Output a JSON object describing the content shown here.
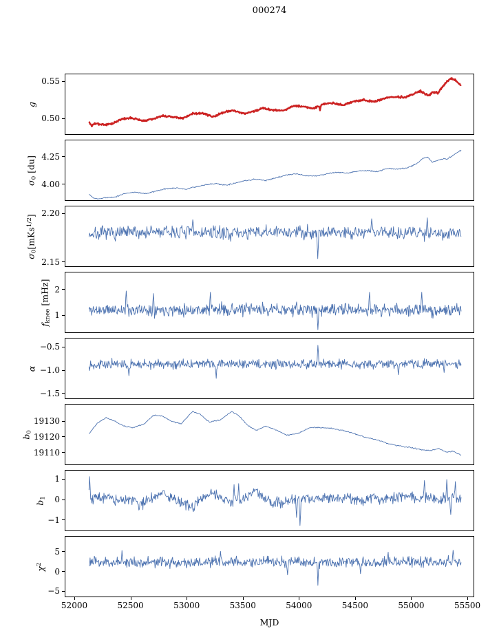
{
  "title": "000274",
  "xlabel": "MJD",
  "colors": {
    "blue": "#4c72b0",
    "red": "#cc2222",
    "axis": "#000000"
  },
  "chart_data": {
    "type": "line",
    "title": "000274",
    "xlabel": "MJD",
    "x_range": [
      51914,
      55561
    ],
    "x_data_range": [
      52125,
      55450
    ],
    "x_ticks": [
      {
        "value": 52000,
        "label": "52000"
      },
      {
        "value": 52500,
        "label": "52500"
      },
      {
        "value": 53000,
        "label": "53000"
      },
      {
        "value": 53500,
        "label": "53500"
      },
      {
        "value": 54000,
        "label": "54000"
      },
      {
        "value": 54500,
        "label": "54500"
      },
      {
        "value": 55000,
        "label": "55000"
      },
      {
        "value": 55500,
        "label": "55500"
      }
    ],
    "panels": [
      {
        "id": "g",
        "ylabel_segments": [
          {
            "t": "g"
          }
        ],
        "color": "red",
        "line_width": 2.4,
        "seed": 3,
        "n_points": 800,
        "noise": 0.0009,
        "ylim": [
          0.4778,
          0.5602
        ],
        "yticks": [
          {
            "value": 0.5,
            "label": "0.50"
          },
          {
            "value": 0.55,
            "label": "0.55"
          }
        ],
        "trend": [
          [
            52125,
            0.4955
          ],
          [
            52150,
            0.4885
          ],
          [
            52170,
            0.4925
          ],
          [
            52250,
            0.4905
          ],
          [
            52330,
            0.4925
          ],
          [
            52420,
            0.4985
          ],
          [
            52510,
            0.5
          ],
          [
            52600,
            0.4965
          ],
          [
            52690,
            0.4985
          ],
          [
            52780,
            0.503
          ],
          [
            52870,
            0.5015
          ],
          [
            52960,
            0.4995
          ],
          [
            53050,
            0.506
          ],
          [
            53140,
            0.5065
          ],
          [
            53230,
            0.502
          ],
          [
            53320,
            0.5075
          ],
          [
            53410,
            0.5105
          ],
          [
            53500,
            0.506
          ],
          [
            53590,
            0.509
          ],
          [
            53680,
            0.5135
          ],
          [
            53770,
            0.511
          ],
          [
            53860,
            0.51
          ],
          [
            53950,
            0.5165
          ],
          [
            54040,
            0.516
          ],
          [
            54130,
            0.513
          ],
          [
            54220,
            0.5195
          ],
          [
            54310,
            0.5205
          ],
          [
            54400,
            0.5175
          ],
          [
            54490,
            0.523
          ],
          [
            54580,
            0.525
          ],
          [
            54670,
            0.522
          ],
          [
            54760,
            0.527
          ],
          [
            54850,
            0.529
          ],
          [
            54940,
            0.5285
          ],
          [
            55030,
            0.533
          ],
          [
            55080,
            0.5375
          ],
          [
            55120,
            0.534
          ],
          [
            55160,
            0.531
          ],
          [
            55200,
            0.536
          ],
          [
            55240,
            0.5345
          ],
          [
            55280,
            0.542
          ],
          [
            55320,
            0.55
          ],
          [
            55360,
            0.5545
          ],
          [
            55400,
            0.552
          ],
          [
            55450,
            0.545
          ]
        ],
        "spikes": [
          [
            54190,
            0.5105
          ]
        ]
      },
      {
        "id": "sigma0-du",
        "ylabel_segments": [
          {
            "t": "σ"
          },
          {
            "t": "0",
            "sub": true
          },
          {
            "t": " [du]",
            "rm": true
          }
        ],
        "color": "blue",
        "line_width": 0.9,
        "seed": 5,
        "n_points": 600,
        "noise": 0.004,
        "ylim": [
          3.85,
          4.406
        ],
        "yticks": [
          {
            "value": 4.0,
            "label": "4.00"
          },
          {
            "value": 4.25,
            "label": "4.25"
          }
        ],
        "trend": [
          [
            52125,
            3.905
          ],
          [
            52160,
            3.875
          ],
          [
            52200,
            3.86
          ],
          [
            52280,
            3.875
          ],
          [
            52360,
            3.88
          ],
          [
            52450,
            3.915
          ],
          [
            52540,
            3.925
          ],
          [
            52630,
            3.91
          ],
          [
            52720,
            3.935
          ],
          [
            52810,
            3.955
          ],
          [
            52900,
            3.965
          ],
          [
            52990,
            3.95
          ],
          [
            53080,
            3.975
          ],
          [
            53170,
            3.995
          ],
          [
            53260,
            4.005
          ],
          [
            53350,
            3.99
          ],
          [
            53440,
            4.01
          ],
          [
            53530,
            4.035
          ],
          [
            53620,
            4.045
          ],
          [
            53710,
            4.035
          ],
          [
            53800,
            4.06
          ],
          [
            53890,
            4.085
          ],
          [
            53980,
            4.095
          ],
          [
            54070,
            4.075
          ],
          [
            54160,
            4.075
          ],
          [
            54250,
            4.095
          ],
          [
            54340,
            4.11
          ],
          [
            54430,
            4.1
          ],
          [
            54520,
            4.12
          ],
          [
            54610,
            4.125
          ],
          [
            54700,
            4.115
          ],
          [
            54790,
            4.145
          ],
          [
            54880,
            4.14
          ],
          [
            54970,
            4.15
          ],
          [
            55060,
            4.195
          ],
          [
            55110,
            4.24
          ],
          [
            55150,
            4.25
          ],
          [
            55190,
            4.205
          ],
          [
            55230,
            4.215
          ],
          [
            55280,
            4.235
          ],
          [
            55330,
            4.235
          ],
          [
            55380,
            4.27
          ],
          [
            55450,
            4.315
          ]
        ],
        "spikes": []
      },
      {
        "id": "sigma0-mks",
        "ylabel_segments": [
          {
            "t": "σ"
          },
          {
            "t": "0",
            "sub": true
          },
          {
            "t": "[mKs",
            "rm": true
          },
          {
            "t": "1/2",
            "sup": true
          },
          {
            "t": "]",
            "rm": true
          }
        ],
        "color": "blue",
        "line_width": 0.9,
        "seed": 7,
        "n_points": 650,
        "noise": 0.005,
        "ylim": [
          2.145,
          2.208
        ],
        "yticks": [
          {
            "value": 2.15,
            "label": "2.15"
          },
          {
            "value": 2.2,
            "label": "2.20"
          }
        ],
        "trend": [
          [
            52125,
            2.179
          ],
          [
            52700,
            2.181
          ],
          [
            53400,
            2.18
          ],
          [
            54100,
            2.181
          ],
          [
            54800,
            2.181
          ],
          [
            55450,
            2.18
          ]
        ],
        "spikes": [
          [
            54170,
            2.153
          ],
          [
            53050,
            2.194
          ],
          [
            54650,
            2.195
          ],
          [
            55150,
            2.196
          ]
        ]
      },
      {
        "id": "fknee",
        "ylabel_segments": [
          {
            "t": "f"
          },
          {
            "t": "knee",
            "sub": true
          },
          {
            "t": " [mHz]",
            "rm": true
          }
        ],
        "color": "blue",
        "line_width": 0.9,
        "seed": 11,
        "n_points": 700,
        "noise": 0.17,
        "ylim": [
          0.32,
          2.68
        ],
        "yticks": [
          {
            "value": 1,
            "label": "1"
          },
          {
            "value": 2,
            "label": "2"
          }
        ],
        "trend": [
          [
            52125,
            1.2
          ],
          [
            53500,
            1.22
          ],
          [
            55450,
            1.18
          ]
        ],
        "spikes": [
          [
            52460,
            1.95
          ],
          [
            52700,
            1.85
          ],
          [
            53210,
            1.9
          ],
          [
            54630,
            1.9
          ],
          [
            55100,
            1.9
          ],
          [
            54170,
            0.42
          ]
        ]
      },
      {
        "id": "alpha",
        "ylabel_segments": [
          {
            "t": "α"
          }
        ],
        "color": "blue",
        "line_width": 0.9,
        "seed": 13,
        "n_points": 700,
        "noise": 0.07,
        "ylim": [
          -1.62,
          -0.3
        ],
        "yticks": [
          {
            "value": -0.5,
            "label": "−0.5"
          },
          {
            "value": -1.0,
            "label": "−1.0"
          },
          {
            "value": -1.5,
            "label": "−1.5"
          }
        ],
        "trend": [
          [
            52125,
            -0.87
          ],
          [
            53500,
            -0.86
          ],
          [
            55450,
            -0.86
          ]
        ],
        "spikes": [
          [
            54170,
            -0.45
          ],
          [
            53260,
            -1.18
          ],
          [
            52480,
            -1.12
          ],
          [
            54890,
            -1.1
          ],
          [
            55300,
            -1.05
          ]
        ]
      },
      {
        "id": "b0",
        "ylabel_segments": [
          {
            "t": "b"
          },
          {
            "t": "0",
            "sub": true
          }
        ],
        "color": "blue",
        "line_width": 0.9,
        "seed": 17,
        "n_points": 500,
        "noise": 0.25,
        "ylim": [
          19102,
          19141
        ],
        "yticks": [
          {
            "value": 19110,
            "label": "19110"
          },
          {
            "value": 19120,
            "label": "19120"
          },
          {
            "value": 19130,
            "label": "19130"
          }
        ],
        "trend": [
          [
            52125,
            19122
          ],
          [
            52200,
            19129
          ],
          [
            52280,
            19132.5
          ],
          [
            52360,
            19130
          ],
          [
            52440,
            19127
          ],
          [
            52520,
            19126
          ],
          [
            52620,
            19128.5
          ],
          [
            52700,
            19134
          ],
          [
            52780,
            19133.5
          ],
          [
            52860,
            19130
          ],
          [
            52950,
            19128.5
          ],
          [
            53050,
            19136.5
          ],
          [
            53120,
            19134.5
          ],
          [
            53200,
            19129.5
          ],
          [
            53300,
            19131
          ],
          [
            53400,
            19136.5
          ],
          [
            53460,
            19134
          ],
          [
            53550,
            19127
          ],
          [
            53620,
            19124
          ],
          [
            53700,
            19127
          ],
          [
            53780,
            19125
          ],
          [
            53900,
            19121
          ],
          [
            54000,
            19122.5
          ],
          [
            54100,
            19126
          ],
          [
            54200,
            19126
          ],
          [
            54300,
            19125.5
          ],
          [
            54400,
            19124
          ],
          [
            54500,
            19122
          ],
          [
            54600,
            19119.5
          ],
          [
            54700,
            19118
          ],
          [
            54800,
            19115.5
          ],
          [
            54900,
            19114
          ],
          [
            55000,
            19113
          ],
          [
            55100,
            19111.5
          ],
          [
            55180,
            19111
          ],
          [
            55250,
            19112.5
          ],
          [
            55320,
            19110
          ],
          [
            55380,
            19110.5
          ],
          [
            55450,
            19108
          ]
        ],
        "spikes": []
      },
      {
        "id": "b1",
        "ylabel_segments": [
          {
            "t": "b"
          },
          {
            "t": "1",
            "sub": true
          }
        ],
        "color": "blue",
        "line_width": 0.9,
        "seed": 19,
        "n_points": 650,
        "noise": 0.2,
        "ylim": [
          -1.55,
          1.45
        ],
        "yticks": [
          {
            "value": -1,
            "label": "−1"
          },
          {
            "value": 0,
            "label": "0"
          },
          {
            "value": 1,
            "label": "1"
          }
        ],
        "trend": [
          [
            52125,
            0.0
          ],
          [
            52200,
            0.15
          ],
          [
            52300,
            0.1
          ],
          [
            52400,
            -0.1
          ],
          [
            52500,
            0.05
          ],
          [
            52600,
            -0.25
          ],
          [
            52700,
            0.1
          ],
          [
            52800,
            0.3
          ],
          [
            52850,
            0.1
          ],
          [
            52950,
            -0.2
          ],
          [
            53050,
            -0.35
          ],
          [
            53150,
            0.1
          ],
          [
            53250,
            0.35
          ],
          [
            53300,
            0.15
          ],
          [
            53400,
            -0.2
          ],
          [
            53500,
            0.0
          ],
          [
            53600,
            0.45
          ],
          [
            53650,
            0.2
          ],
          [
            53750,
            -0.15
          ],
          [
            53850,
            -0.2
          ],
          [
            53950,
            0.1
          ],
          [
            54050,
            0.1
          ],
          [
            54150,
            0.0
          ],
          [
            54250,
            0.1
          ],
          [
            54350,
            0.05
          ],
          [
            54450,
            0.1
          ],
          [
            54550,
            0.0
          ],
          [
            54650,
            0.1
          ],
          [
            54750,
            0.05
          ],
          [
            54850,
            0.1
          ],
          [
            54950,
            0.15
          ],
          [
            55050,
            0.05
          ],
          [
            55150,
            0.1
          ],
          [
            55250,
            0.0
          ],
          [
            55350,
            0.1
          ],
          [
            55450,
            0.05
          ]
        ],
        "spikes": [
          [
            52130,
            1.15
          ],
          [
            53420,
            0.75
          ],
          [
            53460,
            0.8
          ],
          [
            53980,
            -0.9
          ],
          [
            54010,
            -1.3
          ],
          [
            55120,
            0.95
          ],
          [
            55320,
            1.0
          ],
          [
            55360,
            -0.75
          ],
          [
            55400,
            0.9
          ]
        ]
      },
      {
        "id": "chi2",
        "ylabel_segments": [
          {
            "t": "χ"
          },
          {
            "t": "2",
            "sup": true
          }
        ],
        "color": "blue",
        "line_width": 0.9,
        "seed": 23,
        "n_points": 700,
        "noise": 1.0,
        "ylim": [
          -6.5,
          9.0
        ],
        "yticks": [
          {
            "value": -5,
            "label": "−5"
          },
          {
            "value": 0,
            "label": "0"
          },
          {
            "value": 5,
            "label": "5"
          }
        ],
        "trend": [
          [
            52125,
            2.4
          ],
          [
            53200,
            2.3
          ],
          [
            54200,
            2.5
          ],
          [
            55450,
            2.5
          ]
        ],
        "spikes": [
          [
            52420,
            5.4
          ],
          [
            53300,
            5.2
          ],
          [
            54170,
            -3.6
          ],
          [
            54800,
            5.0
          ],
          [
            55380,
            5.5
          ],
          [
            53900,
            -0.9
          ],
          [
            54550,
            -0.6
          ]
        ]
      }
    ]
  }
}
